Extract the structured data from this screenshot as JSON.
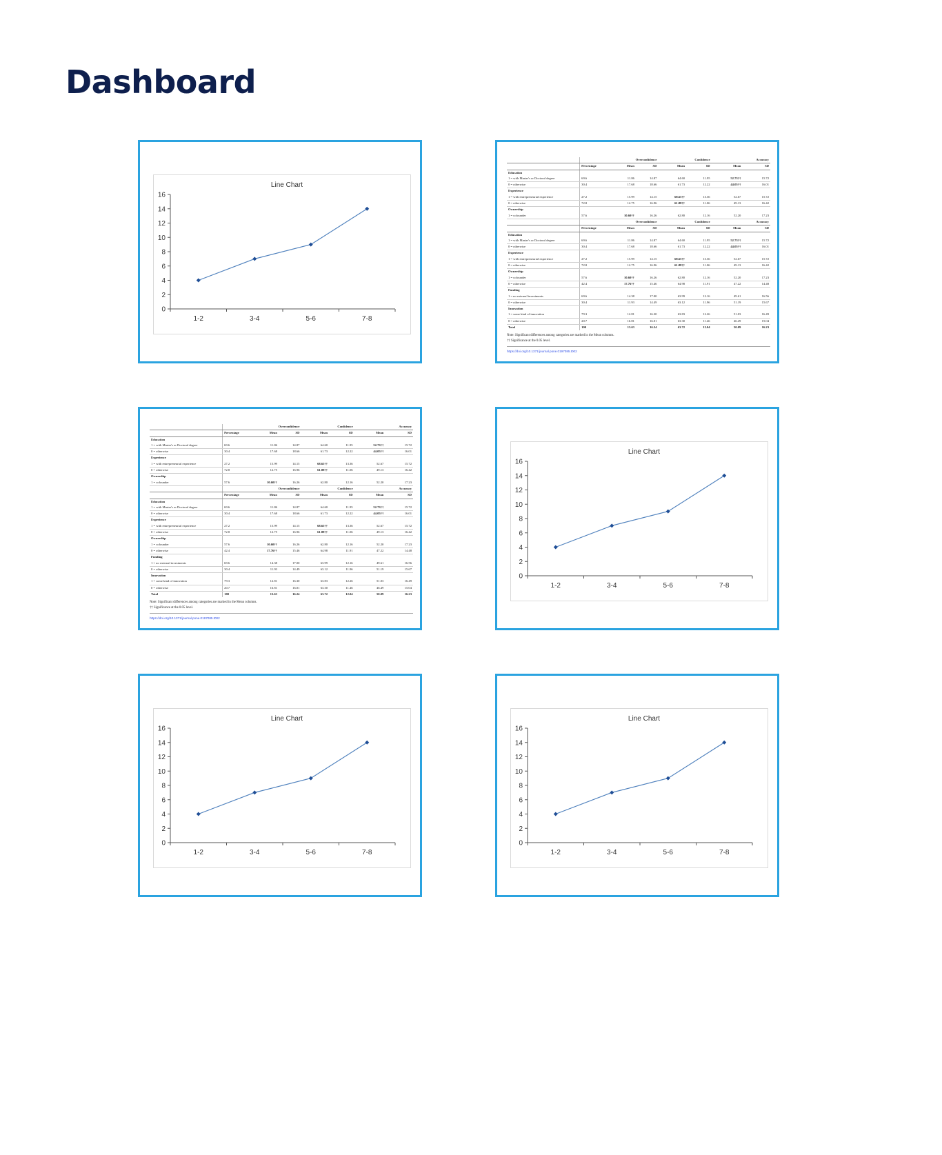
{
  "header": {
    "title": "Dashboard"
  },
  "chart_data": {
    "type": "line",
    "title": "Line Chart",
    "categories": [
      "1-2",
      "3-4",
      "5-6",
      "7-8"
    ],
    "values": [
      4,
      7,
      9,
      14
    ],
    "yticks": [
      0,
      2,
      4,
      6,
      8,
      10,
      12,
      14,
      16
    ],
    "ylim": [
      0,
      16
    ],
    "xlabel": "",
    "ylabel": "",
    "legend": "none",
    "colors": {
      "line": "#4f81bd",
      "marker": "#1f4e96"
    }
  },
  "table": {
    "group_headers": [
      "Overconfidence",
      "Confidence",
      "Accuracy"
    ],
    "col_headers": [
      "Percentage",
      "Mean",
      "SD",
      "Mean",
      "SD",
      "Mean",
      "SD"
    ],
    "block_a": [
      {
        "kind": "sec",
        "label": "Education"
      },
      {
        "kind": "row",
        "label": "1 = with Master's or Doctoral degree",
        "cells": [
          "69.6",
          "11.86",
          "14.87",
          "64.60",
          "11.95",
          "52.73††",
          "15.72"
        ]
      },
      {
        "kind": "row",
        "label": "0 = otherwise",
        "cells": [
          "30.4",
          "17.68",
          "18.66",
          "61.73",
          "12.22",
          "44.05††",
          "16.01"
        ]
      },
      {
        "kind": "sec",
        "label": "Experience"
      },
      {
        "kind": "row",
        "label": "1 = with entrepreneurial experience",
        "cells": [
          "27.2",
          "15.99",
          "14.15",
          "68.65††",
          "13.36",
          "52.67",
          "15.72"
        ]
      },
      {
        "kind": "row",
        "label": "0 = otherwise",
        "cells": [
          "72.8",
          "12.75",
          "16.96",
          "61.88††",
          "11.06",
          "49.13",
          "16.42"
        ]
      },
      {
        "kind": "sec",
        "label": "Ownership"
      },
      {
        "kind": "row",
        "label": "1 = cofounder",
        "cells": [
          "57.6",
          "10.60††",
          "16.26",
          "62.80",
          "12.16",
          "52.20",
          "17.23"
        ]
      }
    ],
    "block_b": [
      {
        "kind": "sec",
        "label": "Education"
      },
      {
        "kind": "row",
        "label": "1 = with Master's or Doctoral degree",
        "cells": [
          "69.6",
          "11.86",
          "14.87",
          "64.60",
          "11.95",
          "52.73††",
          "15.72"
        ]
      },
      {
        "kind": "row",
        "label": "0 = otherwise",
        "cells": [
          "30.4",
          "17.68",
          "18.66",
          "61.73",
          "12.22",
          "44.05††",
          "16.01"
        ]
      },
      {
        "kind": "sec",
        "label": "Experience"
      },
      {
        "kind": "row",
        "label": "1 = with entrepreneurial experience",
        "cells": [
          "27.2",
          "15.99",
          "14.15",
          "68.65††",
          "13.36",
          "52.67",
          "15.72"
        ]
      },
      {
        "kind": "row",
        "label": "0 = otherwise",
        "cells": [
          "72.8",
          "12.75",
          "16.96",
          "61.88††",
          "11.06",
          "49.13",
          "16.42"
        ]
      },
      {
        "kind": "sec",
        "label": "Ownership"
      },
      {
        "kind": "row",
        "label": "1 = cofounder",
        "cells": [
          "57.6",
          "10.60††",
          "16.26",
          "62.80",
          "12.16",
          "52.20",
          "17.23"
        ]
      },
      {
        "kind": "row",
        "label": "0 = otherwise",
        "cells": [
          "42.4",
          "17.76††",
          "15.46",
          "64.98",
          "11.91",
          "47.22",
          "14.48"
        ]
      },
      {
        "kind": "sec",
        "label": "Funding"
      },
      {
        "kind": "row",
        "label": "1 = no external investments",
        "cells": [
          "69.6",
          "14.38",
          "17.00",
          "63.99",
          "12.16",
          "49.61",
          "16.56"
        ]
      },
      {
        "kind": "row",
        "label": "0 = otherwise",
        "cells": [
          "30.4",
          "11.93",
          "14.49",
          "63.12",
          "11.96",
          "51.19",
          "15.67"
        ]
      },
      {
        "kind": "sec",
        "label": "Innovation"
      },
      {
        "kind": "row",
        "label": "1 = some kind of innovation",
        "cells": [
          "79.3",
          "12.81",
          "16.30",
          "63.83",
          "12.26",
          "51.03",
          "16.49"
        ]
      },
      {
        "kind": "row",
        "label": "0 = otherwise",
        "cells": [
          "20.7",
          "16.81",
          "16.01",
          "63.30",
          "11.46",
          "46.49",
          "15.04"
        ]
      },
      {
        "kind": "sec",
        "label": "Total",
        "cells": [
          "100",
          "13.63",
          "16.24",
          "63.72",
          "12.04",
          "50.09",
          "16.23"
        ]
      }
    ],
    "note": "Note: Significant differences among categories are marked in the Mean columns.",
    "note2": "†† Significance at the 0.05 level.",
    "link": "https://doi.org/10.1371/journal.pone.0197085.t002"
  },
  "cards": [
    {
      "kind": "chart"
    },
    {
      "kind": "table"
    },
    {
      "kind": "table"
    },
    {
      "kind": "chart"
    },
    {
      "kind": "chart"
    },
    {
      "kind": "chart"
    }
  ]
}
